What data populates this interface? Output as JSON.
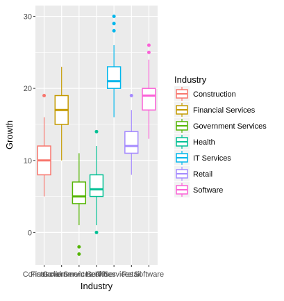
{
  "chart_data": {
    "type": "boxplot",
    "title": "",
    "xlabel": "Industry",
    "ylabel": "Growth",
    "ylim": [
      -4.5,
      31.5
    ],
    "yticks": [
      0,
      10,
      20,
      30
    ],
    "grid": true,
    "legend": {
      "title": "Industry",
      "position": "right"
    },
    "categories": [
      "Construction",
      "Financial Services",
      "Government Services",
      "Health",
      "IT Services",
      "Retail",
      "Software"
    ],
    "series": [
      {
        "name": "Construction",
        "color": "#F8766D",
        "q1": 8,
        "median": 10,
        "q3": 12,
        "whisker_low": 5,
        "whisker_high": 16,
        "outliers": [
          19
        ]
      },
      {
        "name": "Financial Services",
        "color": "#C49A00",
        "q1": 15,
        "median": 17,
        "q3": 19,
        "whisker_low": 10,
        "whisker_high": 23,
        "outliers": []
      },
      {
        "name": "Government Services",
        "color": "#53B400",
        "q1": 4,
        "median": 5,
        "q3": 7,
        "whisker_low": 1,
        "whisker_high": 11,
        "outliers": [
          -2,
          -3
        ]
      },
      {
        "name": "Health",
        "color": "#00C094",
        "q1": 5,
        "median": 6,
        "q3": 8,
        "whisker_low": 1,
        "whisker_high": 12,
        "outliers": [
          14,
          0
        ]
      },
      {
        "name": "IT Services",
        "color": "#00B6EB",
        "q1": 20,
        "median": 21,
        "q3": 23,
        "whisker_low": 16,
        "whisker_high": 26,
        "outliers": [
          28,
          29,
          30
        ]
      },
      {
        "name": "Retail",
        "color": "#A58AFF",
        "q1": 11,
        "median": 12,
        "q3": 14,
        "whisker_low": 8,
        "whisker_high": 17,
        "outliers": [
          19
        ]
      },
      {
        "name": "Software",
        "color": "#FB61D7",
        "q1": 17,
        "median": 19,
        "q3": 20,
        "whisker_low": 13,
        "whisker_high": 24,
        "outliers": [
          25,
          26
        ]
      }
    ]
  }
}
